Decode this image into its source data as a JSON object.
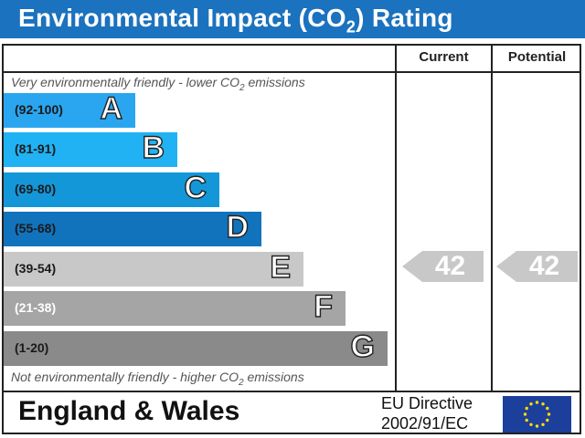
{
  "header": {
    "title_pre": "Environmental Impact (CO",
    "title_sub": "2",
    "title_post": ") Rating"
  },
  "columns": {
    "current": "Current",
    "potential": "Potential"
  },
  "top_note": {
    "pre": "Very environmentally friendly - lower CO",
    "sub": "2",
    "post": " emissions"
  },
  "bottom_note": {
    "pre": "Not environmentally friendly - higher CO",
    "sub": "2",
    "post": " emissions"
  },
  "chart_data": {
    "type": "bar",
    "title": "Environmental Impact (CO2) Rating",
    "categories": [
      "A",
      "B",
      "C",
      "D",
      "E",
      "F",
      "G"
    ],
    "bands": [
      {
        "letter": "A",
        "range": "(92-100)",
        "color": "#2aa6f0",
        "range_color": "#1a1a1a"
      },
      {
        "letter": "B",
        "range": "(81-91)",
        "color": "#21b2f4",
        "range_color": "#1a1a1a"
      },
      {
        "letter": "C",
        "range": "(69-80)",
        "color": "#1497d8",
        "range_color": "#1a1a1a"
      },
      {
        "letter": "D",
        "range": "(55-68)",
        "color": "#1273bd",
        "range_color": "#1a1a1a"
      },
      {
        "letter": "E",
        "range": "(39-54)",
        "color": "#c8c8c8",
        "range_color": "#1a1a1a"
      },
      {
        "letter": "F",
        "range": "(21-38)",
        "color": "#a5a5a5",
        "range_color": "#ffffff"
      },
      {
        "letter": "G",
        "range": "(1-20)",
        "color": "#8a8a8a",
        "range_color": "#1a1a1a"
      }
    ],
    "current": {
      "value": 42,
      "band": "E"
    },
    "potential": {
      "value": 42,
      "band": "E"
    }
  },
  "footer": {
    "region": "England & Wales",
    "directive_line1": "EU Directive",
    "directive_line2": "2002/91/EC"
  }
}
